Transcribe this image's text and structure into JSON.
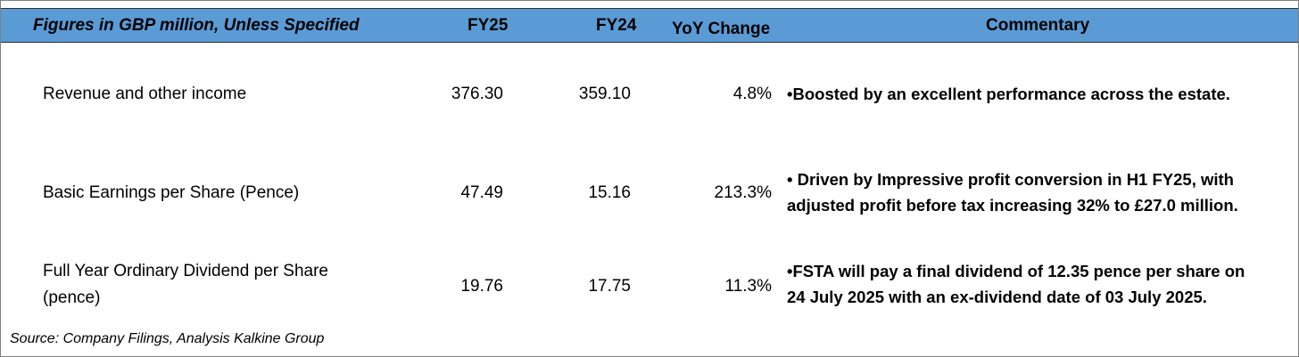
{
  "colors": {
    "header_bg": "#5b9bd5",
    "border": "#7f7f7f",
    "text": "#000000"
  },
  "header": {
    "label": "Figures in GBP  million, Unless Specified",
    "fy25": "FY25",
    "fy24": "FY24",
    "yoy": "YoY Change",
    "commentary": "Commentary"
  },
  "rows": [
    {
      "label_lines": [
        "Revenue and other income"
      ],
      "fy25": "376.30",
      "fy24": "359.10",
      "yoy": "4.8%",
      "commentary_lines": [
        "•Boosted by an excellent performance across the estate."
      ]
    },
    {
      "label_lines": [
        "Basic Earnings per Share (Pence)"
      ],
      "fy25": "47.49",
      "fy24": "15.16",
      "yoy": "213.3%",
      "commentary_lines": [
        "• Driven by Impressive profit conversion in H1 FY25, with",
        "adjusted profit before tax increasing 32% to £27.0 million."
      ]
    },
    {
      "label_lines": [
        "Full Year Ordinary Dividend per Share",
        "(pence)"
      ],
      "fy25": "19.76",
      "fy24": "17.75",
      "yoy": "11.3%",
      "commentary_lines": [
        "•FSTA will pay a final dividend of 12.35 pence per share on",
        "24 July 2025 with an ex-dividend date of 03 July 2025."
      ]
    }
  ],
  "source": "Source: Company Filings, Analysis Kalkine Group"
}
